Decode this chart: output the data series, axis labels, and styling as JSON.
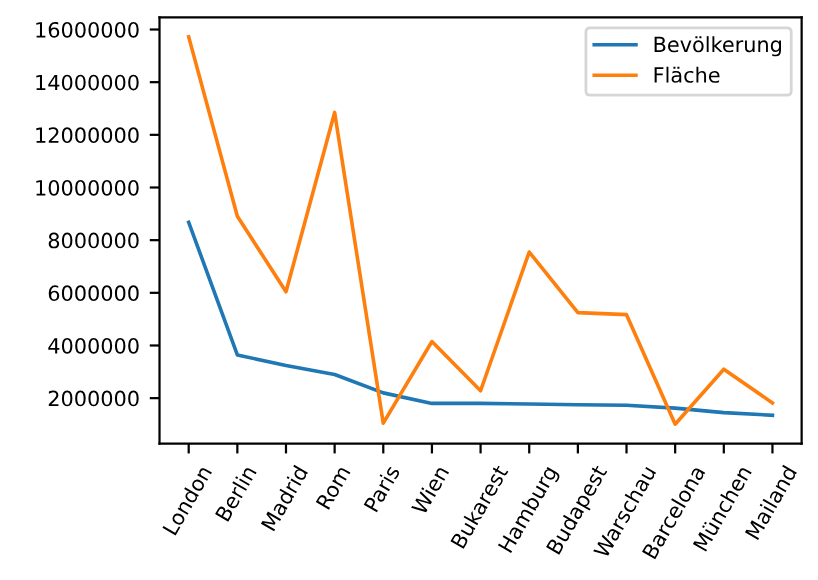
{
  "chart_data": {
    "type": "line",
    "categories": [
      "London",
      "Berlin",
      "Madrid",
      "Rom",
      "Paris",
      "Wien",
      "Bukarest",
      "Hamburg",
      "Budapest",
      "Warschau",
      "Barcelona",
      "München",
      "Mailand"
    ],
    "series": [
      {
        "name": "Bevölkerung",
        "color": "#1f77b4",
        "values": [
          8680000,
          3640000,
          3240000,
          2900000,
          2200000,
          1800000,
          1800000,
          1780000,
          1750000,
          1730000,
          1620000,
          1450000,
          1350000
        ]
      },
      {
        "name": "Fläche",
        "color": "#ff7f0e",
        "values": [
          15720000,
          8910000,
          6040000,
          12850000,
          1050000,
          4150000,
          2280000,
          7550000,
          5250000,
          5170000,
          1010000,
          3100000,
          1820000
        ]
      }
    ],
    "ylim": [
      270000,
      16460000
    ],
    "yticks": [
      2000000,
      4000000,
      6000000,
      8000000,
      10000000,
      12000000,
      14000000,
      16000000
    ],
    "legend": "top right",
    "grid": false
  }
}
